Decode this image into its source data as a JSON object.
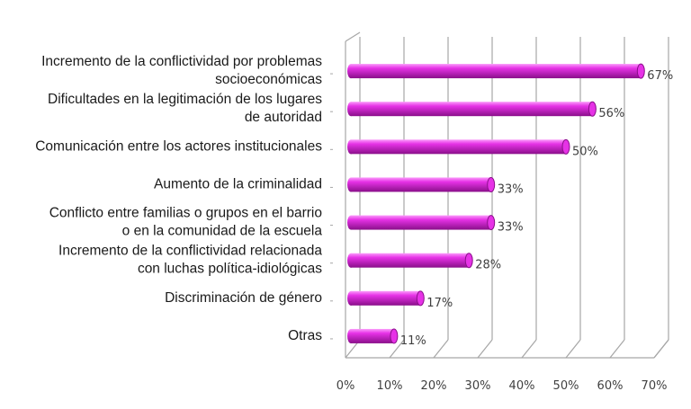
{
  "chart_data": {
    "type": "bar",
    "orientation": "horizontal",
    "style": "3d-cylinder",
    "categories": [
      [
        "Incremento de la conflictividad por problemas",
        "socioeconómicas"
      ],
      [
        "Dificultades en la legitimación de los lugares",
        "de autoridad"
      ],
      [
        "Comunicación entre los actores institucionales"
      ],
      [
        "Aumento de la criminalidad"
      ],
      [
        "Conflicto entre familias o grupos en el barrio",
        "o en la comunidad de la escuela"
      ],
      [
        "Incremento de la conflictividad relacionada",
        "con luchas política-idiológicas"
      ],
      [
        "Discriminación de género"
      ],
      [
        "Otras"
      ]
    ],
    "values": [
      67,
      56,
      50,
      33,
      33,
      28,
      17,
      11
    ],
    "value_labels": [
      "67%",
      "56%",
      "50%",
      "33%",
      "33%",
      "28%",
      "17%",
      "11%"
    ],
    "xlim": [
      0,
      70
    ],
    "xticks": [
      "0%",
      "10%",
      "20%",
      "30%",
      "40%",
      "50%",
      "60%",
      "70%"
    ],
    "grid": true,
    "legend": "none",
    "colors": {
      "bar": "#e632e6",
      "bar_dark": "#8a0f8a",
      "bar_light": "#fb9cfb",
      "grid": "#a6a6a6"
    }
  }
}
